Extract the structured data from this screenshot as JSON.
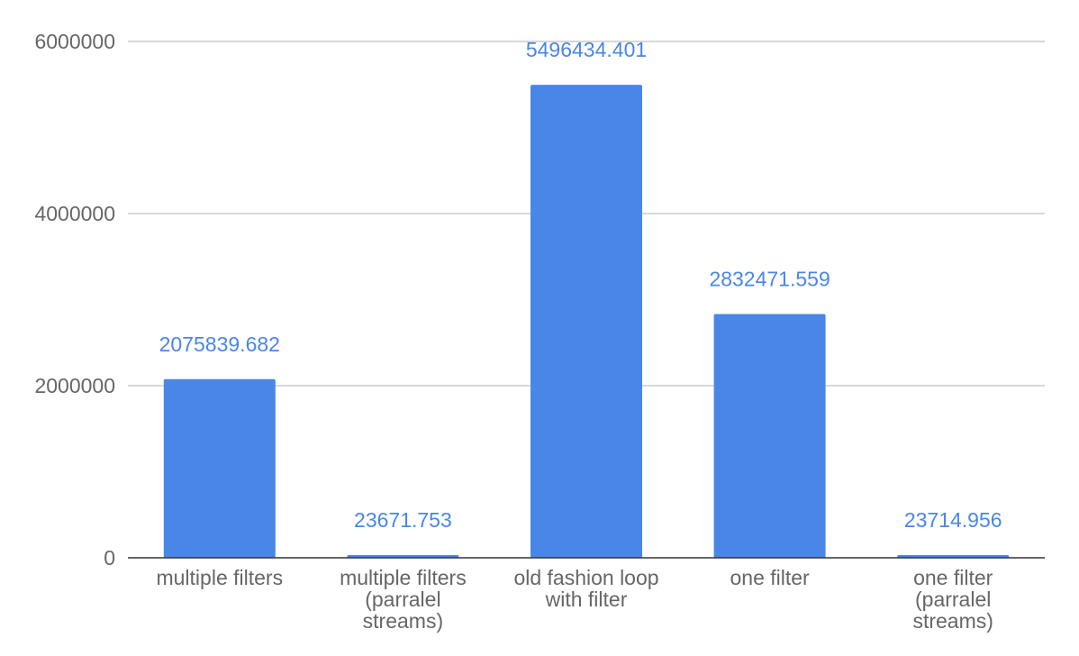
{
  "chart_data": {
    "type": "bar",
    "categories": [
      "multiple filters",
      "multiple filters (parralel streams)",
      "old fashion loop with filter",
      "one filter",
      "one filter (parralel streams)"
    ],
    "category_label_lines": [
      [
        "multiple filters"
      ],
      [
        "multiple filters",
        "(parralel",
        "streams)"
      ],
      [
        "old fashion loop",
        "with filter"
      ],
      [
        "one filter"
      ],
      [
        "one filter",
        "(parralel",
        "streams)"
      ]
    ],
    "values": [
      2075839.682,
      23671.753,
      5496434.401,
      2832471.559,
      23714.956
    ],
    "data_labels": [
      "2075839.682",
      "23671.753",
      "5496434.401",
      "2832471.559",
      "23714.956"
    ],
    "yticks": [
      0,
      2000000,
      4000000,
      6000000
    ],
    "ytick_labels": [
      "0",
      "2000000",
      "4000000",
      "6000000"
    ],
    "ylim": [
      0,
      6000000
    ],
    "grid": true,
    "legend": "none",
    "title": "",
    "xlabel": "",
    "ylabel": "",
    "colors": {
      "bar": "#4a86e8",
      "data_label": "#4a86e8",
      "gridline": "#cccccc",
      "baseline": "#333333",
      "tick_label": "#666666"
    }
  }
}
